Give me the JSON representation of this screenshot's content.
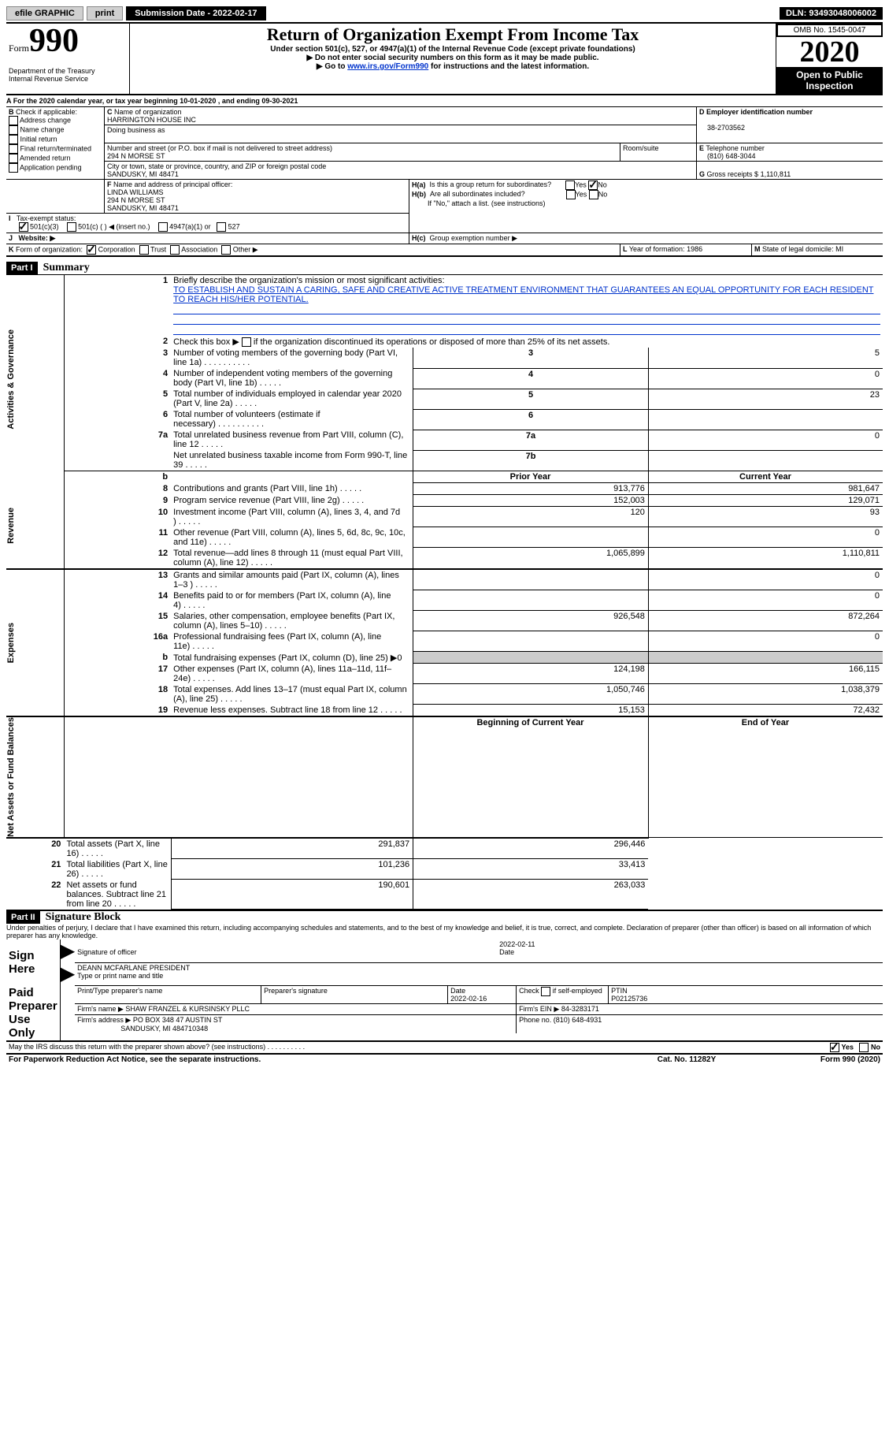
{
  "topbar": {
    "efile": "efile GRAPHIC",
    "print": "print",
    "submission_label": "Submission Date - ",
    "submission_date": "2022-02-17",
    "dln_label": "DLN: ",
    "dln": "93493048006002"
  },
  "header": {
    "form_prefix": "Form",
    "form_number": "990",
    "title": "Return of Organization Exempt From Income Tax",
    "sub1": "Under section 501(c), 527, or 4947(a)(1) of the Internal Revenue Code (except private foundations)",
    "sub2": "▶ Do not enter social security numbers on this form as it may be made public.",
    "sub3_a": "▶ Go to ",
    "sub3_link": "www.irs.gov/Form990",
    "sub3_b": " for instructions and the latest information.",
    "dept": "Department of the Treasury\nInternal Revenue Service",
    "omb": "OMB No. 1545-0047",
    "year": "2020",
    "open": "Open to Public Inspection"
  },
  "period": {
    "text_a": "For the 2020 calendar year, or tax year beginning ",
    "begin": "10-01-2020",
    "text_b": ", and ending ",
    "end": "09-30-2021"
  },
  "boxB": {
    "label": "Check if applicable:",
    "opts": [
      "Address change",
      "Name change",
      "Initial return",
      "Final return/terminated",
      "Amended return",
      "Application pending"
    ]
  },
  "boxC": {
    "name_label": "Name of organization",
    "name": "HARRINGTON HOUSE INC",
    "dba_label": "Doing business as",
    "street_label": "Number and street (or P.O. box if mail is not delivered to street address)",
    "room_label": "Room/suite",
    "street": "294 N MORSE ST",
    "city_label": "City or town, state or province, country, and ZIP or foreign postal code",
    "city": "SANDUSKY, MI  48471"
  },
  "boxD": {
    "label": "Employer identification number",
    "ein": "38-2703562"
  },
  "boxE": {
    "label": "Telephone number",
    "phone": "(810) 648-3044"
  },
  "boxG": {
    "label": "Gross receipts $",
    "amount": "1,110,811"
  },
  "boxF": {
    "label": "Name and address of principal officer:",
    "name": "LINDA WILLIAMS",
    "street": "294 N MORSE ST",
    "city": "SANDUSKY, MI  48471"
  },
  "boxH": {
    "a_label": "Is this a group return for subordinates?",
    "b_label": "Are all subordinates included?",
    "note": "If \"No,\" attach a list. (see instructions)",
    "c_label": "Group exemption number ▶",
    "yes": "Yes",
    "no": "No"
  },
  "boxI": {
    "label": "Tax-exempt status:",
    "o1": "501(c)(3)",
    "o2": "501(c) (   ) ◀ (insert no.)",
    "o3": "4947(a)(1) or",
    "o4": "527"
  },
  "boxJ": {
    "label": "Website: ▶"
  },
  "boxK": {
    "label": "Form of organization:",
    "o1": "Corporation",
    "o2": "Trust",
    "o3": "Association",
    "o4": "Other ▶"
  },
  "boxL": {
    "label": "Year of formation: ",
    "val": "1986"
  },
  "boxM": {
    "label": "State of legal domicile: ",
    "val": "MI"
  },
  "part1": {
    "header": "Part I",
    "title": "Summary",
    "q1_label": "Briefly describe the organization's mission or most significant activities:",
    "mission": "TO ESTABLISH AND SUSTAIN A CARING, SAFE AND CREATIVE ACTIVE TREATMENT ENVIRONMENT THAT GUARANTEES AN EQUAL OPPORTUNITY FOR EACH RESIDENT TO REACH HIS/HER POTENTIAL.",
    "q2": "Check this box ▶       if the organization discontinued its operations or disposed of more than 25% of its net assets.",
    "sections": {
      "gov": "Activities & Governance",
      "rev": "Revenue",
      "exp": "Expenses",
      "net": "Net Assets or Fund Balances"
    },
    "lines": {
      "3": {
        "t": "Number of voting members of the governing body (Part VI, line 1a)",
        "n": "3",
        "v": "5"
      },
      "4": {
        "t": "Number of independent voting members of the governing body (Part VI, line 1b)",
        "n": "4",
        "v": "0"
      },
      "5": {
        "t": "Total number of individuals employed in calendar year 2020 (Part V, line 2a)",
        "n": "5",
        "v": "23"
      },
      "6": {
        "t": "Total number of volunteers (estimate if necessary)",
        "n": "6",
        "v": ""
      },
      "7a": {
        "t": "Total unrelated business revenue from Part VIII, column (C), line 12",
        "n": "7a",
        "v": "0"
      },
      "7b": {
        "t": "Net unrelated business taxable income from Form 990-T, line 39",
        "n": "7b",
        "v": ""
      }
    },
    "col_headers": {
      "prior": "Prior Year",
      "current": "Current Year"
    },
    "rev_lines": [
      {
        "n": "8",
        "t": "Contributions and grants (Part VIII, line 1h)",
        "p": "913,776",
        "c": "981,647"
      },
      {
        "n": "9",
        "t": "Program service revenue (Part VIII, line 2g)",
        "p": "152,003",
        "c": "129,071"
      },
      {
        "n": "10",
        "t": "Investment income (Part VIII, column (A), lines 3, 4, and 7d )",
        "p": "120",
        "c": "93"
      },
      {
        "n": "11",
        "t": "Other revenue (Part VIII, column (A), lines 5, 6d, 8c, 9c, 10c, and 11e)",
        "p": "",
        "c": "0"
      },
      {
        "n": "12",
        "t": "Total revenue—add lines 8 through 11 (must equal Part VIII, column (A), line 12)",
        "p": "1,065,899",
        "c": "1,110,811"
      }
    ],
    "exp_lines": [
      {
        "n": "13",
        "t": "Grants and similar amounts paid (Part IX, column (A), lines 1–3 )",
        "p": "",
        "c": "0"
      },
      {
        "n": "14",
        "t": "Benefits paid to or for members (Part IX, column (A), line 4)",
        "p": "",
        "c": "0"
      },
      {
        "n": "15",
        "t": "Salaries, other compensation, employee benefits (Part IX, column (A), lines 5–10)",
        "p": "926,548",
        "c": "872,264"
      },
      {
        "n": "16a",
        "t": "Professional fundraising fees (Part IX, column (A), line 11e)",
        "p": "",
        "c": "0"
      },
      {
        "n": "b",
        "t": "Total fundraising expenses (Part IX, column (D), line 25) ▶0",
        "p": "GRAY",
        "c": "GRAY"
      },
      {
        "n": "17",
        "t": "Other expenses (Part IX, column (A), lines 11a–11d, 11f–24e)",
        "p": "124,198",
        "c": "166,115"
      },
      {
        "n": "18",
        "t": "Total expenses. Add lines 13–17 (must equal Part IX, column (A), line 25)",
        "p": "1,050,746",
        "c": "1,038,379"
      },
      {
        "n": "19",
        "t": "Revenue less expenses. Subtract line 18 from line 12",
        "p": "15,153",
        "c": "72,432"
      }
    ],
    "net_headers": {
      "begin": "Beginning of Current Year",
      "end": "End of Year"
    },
    "net_lines": [
      {
        "n": "20",
        "t": "Total assets (Part X, line 16)",
        "p": "291,837",
        "c": "296,446"
      },
      {
        "n": "21",
        "t": "Total liabilities (Part X, line 26)",
        "p": "101,236",
        "c": "33,413"
      },
      {
        "n": "22",
        "t": "Net assets or fund balances. Subtract line 21 from line 20",
        "p": "190,601",
        "c": "263,033"
      }
    ]
  },
  "part2": {
    "header": "Part II",
    "title": "Signature Block",
    "decl": "Under penalties of perjury, I declare that I have examined this return, including accompanying schedules and statements, and to the best of my knowledge and belief, it is true, correct, and complete. Declaration of preparer (other than officer) is based on all information of which preparer has any knowledge.",
    "sign_here": "Sign Here",
    "sig_officer": "Signature of officer",
    "sig_date": "2022-02-11",
    "date_label": "Date",
    "officer_name": "DEANN MCFARLANE PRESIDENT",
    "type_label": "Type or print name and title",
    "paid": "Paid Preparer Use Only",
    "prep_name_label": "Print/Type preparer's name",
    "prep_sig_label": "Preparer's signature",
    "prep_date_label": "Date",
    "prep_date": "2022-02-16",
    "self_emp": "Check       if self-employed",
    "ptin_label": "PTIN",
    "ptin": "P02125736",
    "firm_name_label": "Firm's name    ▶",
    "firm_name": "SHAW FRANZEL & KURSINSKY PLLC",
    "firm_ein_label": "Firm's EIN ▶",
    "firm_ein": "84-3283171",
    "firm_addr_label": "Firm's address ▶",
    "firm_addr1": "PO BOX 348 47 AUSTIN ST",
    "firm_addr2": "SANDUSKY, MI  484710348",
    "phone_label": "Phone no. ",
    "phone": "(810) 648-4931",
    "discuss": "May the IRS discuss this return with the preparer shown above? (see instructions)"
  },
  "footer": {
    "pra": "For Paperwork Reduction Act Notice, see the separate instructions.",
    "cat": "Cat. No. 11282Y",
    "form": "Form 990 (2020)"
  }
}
